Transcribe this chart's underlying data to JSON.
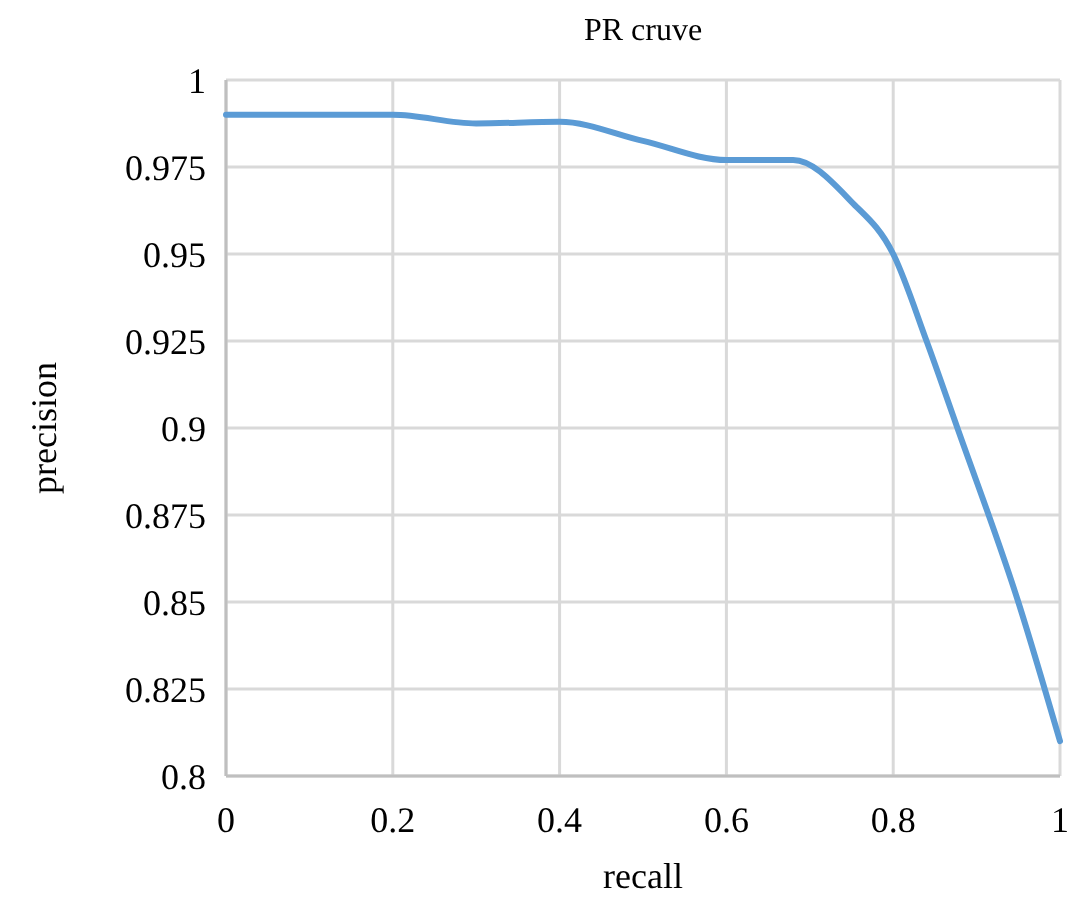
{
  "chart_data": {
    "type": "line",
    "title": "PR cruve",
    "xlabel": "recall",
    "ylabel": "precision",
    "x": [
      0,
      0.1,
      0.2,
      0.3,
      0.4,
      0.5,
      0.6,
      0.68,
      0.75,
      0.8,
      0.84,
      0.877,
      0.95,
      1
    ],
    "series": [
      {
        "color": "#5b9bd5",
        "values": [
          0.99,
          0.99,
          0.99,
          0.9875,
          0.988,
          0.9825,
          0.977,
          0.977,
          0.965,
          0.95,
          0.925,
          0.9,
          0.85,
          0.81
        ]
      }
    ],
    "xlim": [
      0,
      1
    ],
    "xticks": [
      0,
      0.2,
      0.4,
      0.6,
      0.8,
      1
    ],
    "ylim": [
      0.8,
      1
    ],
    "yticks": [
      0.8,
      0.825,
      0.85,
      0.875,
      0.9,
      0.925,
      0.95,
      0.975,
      1
    ],
    "grid": true,
    "marker": "none",
    "line_style": "solid"
  }
}
